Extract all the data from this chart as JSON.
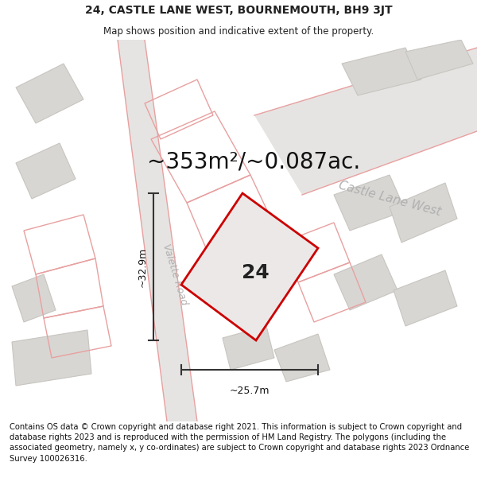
{
  "title": "24, CASTLE LANE WEST, BOURNEMOUTH, BH9 3JT",
  "subtitle": "Map shows position and indicative extent of the property.",
  "area_label": "~353m²/~0.087ac.",
  "plot_number": "24",
  "dim_width": "~25.7m",
  "dim_height": "~32.9m",
  "road_label_left": "Valette Road",
  "road_label_right": "Castle Lane West",
  "footer_text": "Contains OS data © Crown copyright and database right 2021. This information is subject to Crown copyright and database rights 2023 and is reproduced with the permission of HM Land Registry. The polygons (including the associated geometry, namely x, y co-ordinates) are subject to Crown copyright and database rights 2023 Ordnance Survey 100026316.",
  "map_bg": "#f2f0ee",
  "road_fill": "#e6e4e2",
  "building_fill": "#d8d6d3",
  "building_stroke": "#c8c5c0",
  "plot_stroke": "#cc0000",
  "plot_fill": "#ede8e8",
  "pink_stroke": "#e8a0a0",
  "dim_color": "#333333",
  "text_color": "#222222",
  "road_text_color": "#b0b0b0",
  "title_fontsize": 10,
  "subtitle_fontsize": 8.5,
  "area_fontsize": 20,
  "plot_num_fontsize": 18,
  "footer_fontsize": 7.2,
  "dim_label_fontsize": 9,
  "road_label_fontsize": 9
}
